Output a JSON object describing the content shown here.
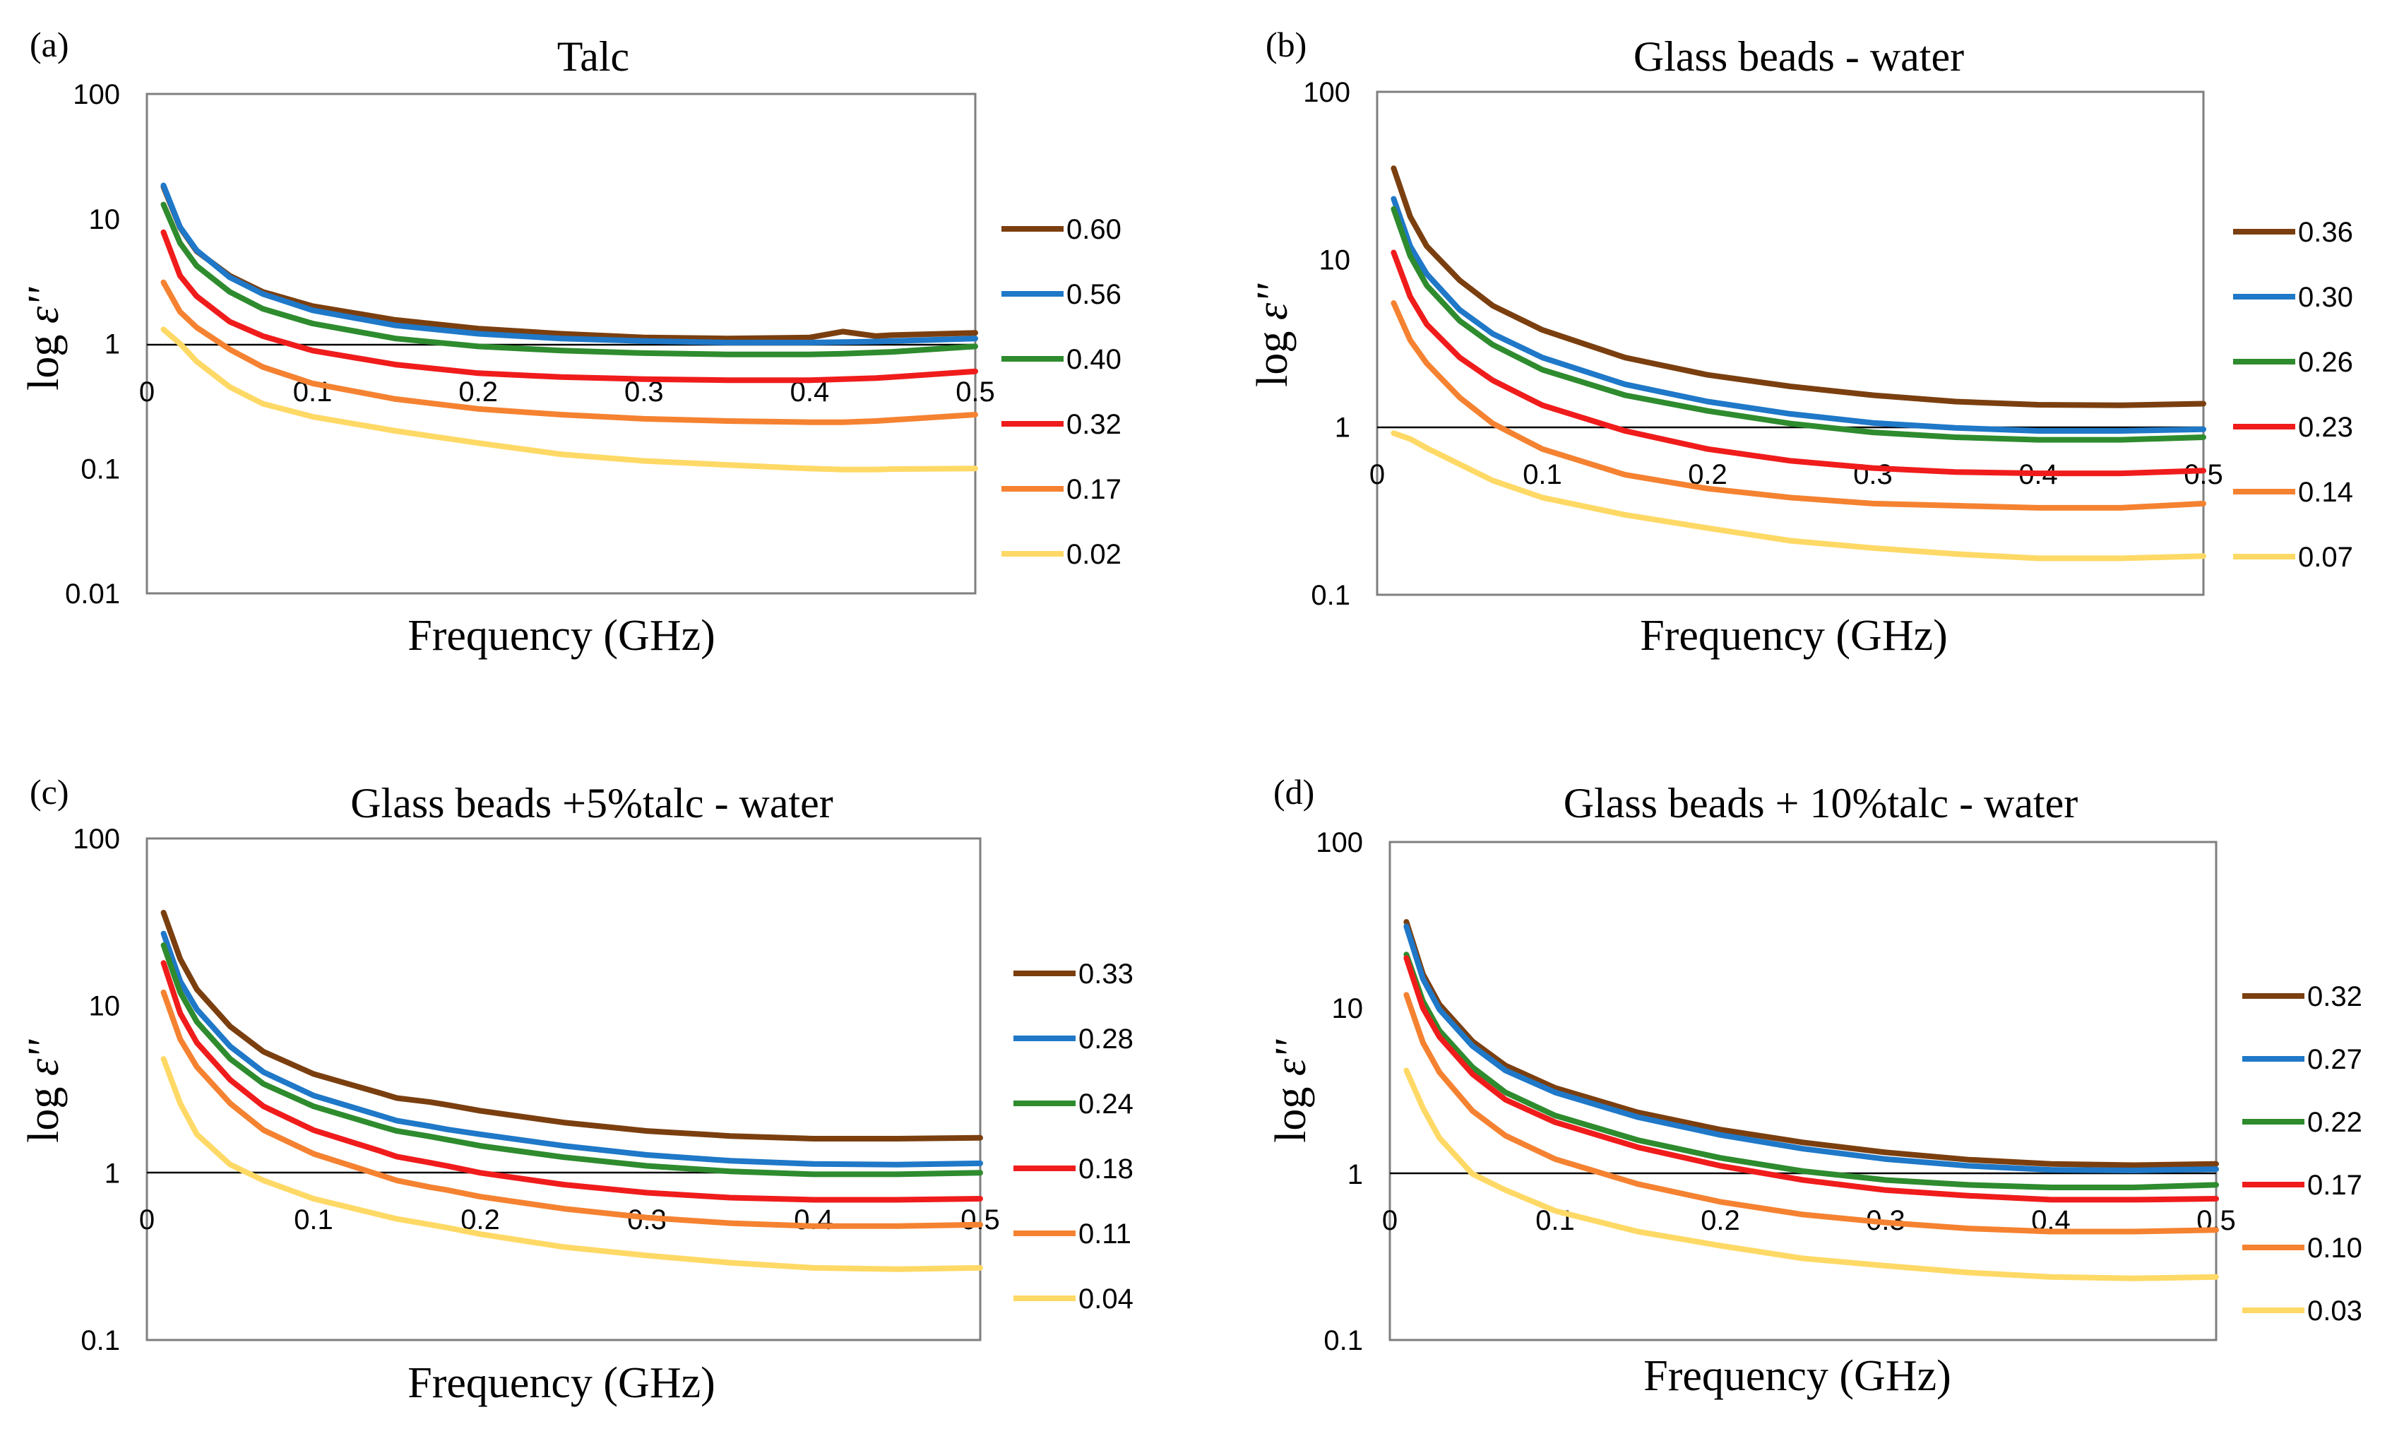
{
  "colors": {
    "brown": "#7B3F0F",
    "blue": "#1F78C8",
    "green": "#2E8B2E",
    "red": "#F01C1C",
    "orange": "#F58231",
    "yellow": "#FFD966"
  },
  "chart_data": [
    {
      "panel_label": "(a)",
      "type": "line",
      "title": "Talc",
      "xlabel": "Frequency (GHz)",
      "ylabel_prefix": "log ",
      "ylabel_symbol": "ε''",
      "yscale": "log",
      "ylim": [
        0.01,
        100
      ],
      "xlim": [
        0,
        0.5
      ],
      "y_ticks": [
        "0.01",
        "0.1",
        "1",
        "10",
        "100"
      ],
      "x_ticks": [
        "0",
        "0.1",
        "0.2",
        "0.3",
        "0.4",
        "0.5"
      ],
      "x_tick_values": [
        0,
        0.1,
        0.2,
        0.3,
        0.4,
        0.5
      ],
      "x": [
        0.01,
        0.02,
        0.03,
        0.05,
        0.07,
        0.1,
        0.15,
        0.2,
        0.25,
        0.3,
        0.35,
        0.4,
        0.42,
        0.44,
        0.45,
        0.5
      ],
      "series": [
        {
          "name": "0.60",
          "color": "#7B3F0F",
          "values": [
            18,
            8.5,
            5.5,
            3.5,
            2.6,
            2.0,
            1.55,
            1.32,
            1.2,
            1.12,
            1.1,
            1.12,
            1.25,
            1.15,
            1.17,
            1.22
          ]
        },
        {
          "name": "0.56",
          "color": "#1F78C8",
          "values": [
            18.5,
            8.6,
            5.6,
            3.4,
            2.5,
            1.85,
            1.4,
            1.2,
            1.1,
            1.05,
            1.02,
            1.02,
            1.03,
            1.04,
            1.05,
            1.1
          ]
        },
        {
          "name": "0.40",
          "color": "#2E8B2E",
          "values": [
            13,
            6.4,
            4.2,
            2.6,
            1.9,
            1.45,
            1.1,
            0.95,
            0.88,
            0.84,
            0.82,
            0.82,
            0.83,
            0.85,
            0.86,
            0.95
          ]
        },
        {
          "name": "0.32",
          "color": "#F01C1C",
          "values": [
            7.8,
            3.5,
            2.4,
            1.5,
            1.15,
            0.88,
            0.68,
            0.58,
            0.54,
            0.52,
            0.51,
            0.51,
            0.52,
            0.53,
            0.54,
            0.6
          ]
        },
        {
          "name": "0.17",
          "color": "#F58231",
          "values": [
            3.1,
            1.8,
            1.35,
            0.9,
            0.65,
            0.48,
            0.36,
            0.3,
            0.27,
            0.25,
            0.24,
            0.235,
            0.235,
            0.24,
            0.245,
            0.27
          ]
        },
        {
          "name": "0.02",
          "color": "#FFD966",
          "values": [
            1.3,
            1.0,
            0.72,
            0.45,
            0.33,
            0.26,
            0.2,
            0.16,
            0.13,
            0.115,
            0.107,
            0.1,
            0.098,
            0.098,
            0.099,
            0.1
          ]
        }
      ]
    },
    {
      "panel_label": "(b)",
      "type": "line",
      "title": "Glass beads - water",
      "xlabel": "Frequency (GHz)",
      "ylabel_prefix": "log ",
      "ylabel_symbol": "ε''",
      "yscale": "log",
      "ylim": [
        0.1,
        100
      ],
      "xlim": [
        0,
        0.5
      ],
      "y_ticks": [
        "0.1",
        "1",
        "10",
        "100"
      ],
      "x_ticks": [
        "0",
        "0.1",
        "0.2",
        "0.3",
        "0.4",
        "0.5"
      ],
      "x_tick_values": [
        0,
        0.1,
        0.2,
        0.3,
        0.4,
        0.5
      ],
      "x": [
        0.01,
        0.02,
        0.03,
        0.05,
        0.07,
        0.1,
        0.15,
        0.2,
        0.25,
        0.3,
        0.35,
        0.4,
        0.45,
        0.5
      ],
      "series": [
        {
          "name": "0.36",
          "color": "#7B3F0F",
          "values": [
            35,
            18,
            12,
            7.5,
            5.3,
            3.8,
            2.6,
            2.05,
            1.75,
            1.55,
            1.42,
            1.36,
            1.35,
            1.38
          ]
        },
        {
          "name": "0.30",
          "color": "#1F78C8",
          "values": [
            23,
            12,
            8.2,
            5.0,
            3.6,
            2.6,
            1.8,
            1.42,
            1.2,
            1.06,
            0.99,
            0.95,
            0.95,
            0.97
          ]
        },
        {
          "name": "0.26",
          "color": "#2E8B2E",
          "values": [
            20,
            10.5,
            7.0,
            4.3,
            3.1,
            2.2,
            1.55,
            1.25,
            1.05,
            0.93,
            0.87,
            0.84,
            0.84,
            0.87
          ]
        },
        {
          "name": "0.23",
          "color": "#F01C1C",
          "values": [
            11,
            6.0,
            4.1,
            2.6,
            1.9,
            1.35,
            0.95,
            0.74,
            0.63,
            0.57,
            0.54,
            0.53,
            0.53,
            0.55
          ]
        },
        {
          "name": "0.14",
          "color": "#F58231",
          "values": [
            5.5,
            3.3,
            2.4,
            1.5,
            1.05,
            0.74,
            0.52,
            0.43,
            0.38,
            0.35,
            0.34,
            0.33,
            0.33,
            0.35
          ]
        },
        {
          "name": "0.07",
          "color": "#FFD966",
          "values": [
            0.92,
            0.85,
            0.75,
            0.6,
            0.48,
            0.38,
            0.3,
            0.25,
            0.21,
            0.19,
            0.175,
            0.165,
            0.165,
            0.17
          ]
        }
      ]
    },
    {
      "panel_label": "(c)",
      "type": "line",
      "title": "Glass beads +5%talc - water",
      "xlabel": "Frequency (GHz)",
      "ylabel_prefix": "log ",
      "ylabel_symbol": "ε''",
      "yscale": "log",
      "ylim": [
        0.1,
        100
      ],
      "xlim": [
        0,
        0.5
      ],
      "y_ticks": [
        "0.1",
        "1",
        "10",
        "100"
      ],
      "x_ticks": [
        "0",
        "0.1",
        "0.2",
        "0.3",
        "0.4",
        "0.5"
      ],
      "x_tick_values": [
        0,
        0.1,
        0.2,
        0.3,
        0.4,
        0.5
      ],
      "x": [
        0.01,
        0.02,
        0.03,
        0.05,
        0.07,
        0.1,
        0.14,
        0.15,
        0.17,
        0.18,
        0.2,
        0.25,
        0.3,
        0.35,
        0.4,
        0.45,
        0.5
      ],
      "series": [
        {
          "name": "0.33",
          "color": "#7B3F0F",
          "values": [
            36,
            19,
            12.5,
            7.5,
            5.3,
            3.9,
            3.0,
            2.8,
            2.65,
            2.55,
            2.35,
            2.0,
            1.78,
            1.66,
            1.6,
            1.6,
            1.62
          ]
        },
        {
          "name": "0.28",
          "color": "#1F78C8",
          "values": [
            27,
            14,
            9.5,
            5.7,
            4.0,
            2.9,
            2.2,
            2.05,
            1.9,
            1.82,
            1.7,
            1.45,
            1.28,
            1.18,
            1.13,
            1.12,
            1.14
          ]
        },
        {
          "name": "0.24",
          "color": "#2E8B2E",
          "values": [
            23,
            12,
            8.0,
            4.8,
            3.4,
            2.5,
            1.9,
            1.78,
            1.65,
            1.58,
            1.45,
            1.24,
            1.1,
            1.02,
            0.98,
            0.98,
            1.0
          ]
        },
        {
          "name": "0.18",
          "color": "#F01C1C",
          "values": [
            18,
            9.0,
            6.0,
            3.6,
            2.5,
            1.8,
            1.35,
            1.25,
            1.15,
            1.1,
            1.0,
            0.85,
            0.76,
            0.71,
            0.69,
            0.69,
            0.7
          ]
        },
        {
          "name": "0.11",
          "color": "#F58231",
          "values": [
            12,
            6.3,
            4.3,
            2.6,
            1.8,
            1.3,
            0.97,
            0.9,
            0.82,
            0.79,
            0.72,
            0.61,
            0.54,
            0.5,
            0.48,
            0.48,
            0.49
          ]
        },
        {
          "name": "0.04",
          "color": "#FFD966",
          "values": [
            4.8,
            2.6,
            1.7,
            1.12,
            0.9,
            0.7,
            0.56,
            0.53,
            0.49,
            0.47,
            0.43,
            0.36,
            0.32,
            0.29,
            0.27,
            0.265,
            0.27
          ]
        }
      ]
    },
    {
      "panel_label": "(d)",
      "type": "line",
      "title": "Glass beads + 10%talc - water",
      "xlabel": "Frequency (GHz)",
      "ylabel_prefix": "log ",
      "ylabel_symbol": "ε''",
      "yscale": "log",
      "ylim": [
        0.1,
        100
      ],
      "xlim": [
        0,
        0.5
      ],
      "y_ticks": [
        "0.1",
        "1",
        "10",
        "100"
      ],
      "x_ticks": [
        "0",
        "0.1",
        "0.2",
        "0.3",
        "0.4",
        "0.5"
      ],
      "x_tick_values": [
        0,
        0.1,
        0.2,
        0.3,
        0.4,
        0.5
      ],
      "x": [
        0.01,
        0.02,
        0.03,
        0.05,
        0.07,
        0.1,
        0.15,
        0.2,
        0.25,
        0.3,
        0.35,
        0.4,
        0.45,
        0.5
      ],
      "series": [
        {
          "name": "0.32",
          "color": "#7B3F0F",
          "values": [
            33,
            16,
            10.5,
            6.3,
            4.5,
            3.3,
            2.35,
            1.85,
            1.55,
            1.35,
            1.22,
            1.15,
            1.13,
            1.15
          ]
        },
        {
          "name": "0.27",
          "color": "#1F78C8",
          "values": [
            31,
            15,
            9.8,
            5.9,
            4.2,
            3.1,
            2.2,
            1.72,
            1.42,
            1.23,
            1.12,
            1.06,
            1.05,
            1.07
          ]
        },
        {
          "name": "0.22",
          "color": "#2E8B2E",
          "values": [
            21,
            11,
            7.3,
            4.4,
            3.1,
            2.25,
            1.6,
            1.25,
            1.04,
            0.92,
            0.86,
            0.83,
            0.83,
            0.86
          ]
        },
        {
          "name": "0.17",
          "color": "#F01C1C",
          "values": [
            20,
            10,
            6.7,
            4.0,
            2.8,
            2.05,
            1.45,
            1.12,
            0.92,
            0.8,
            0.74,
            0.7,
            0.7,
            0.71
          ]
        },
        {
          "name": "0.10",
          "color": "#F58231",
          "values": [
            12,
            6.2,
            4.1,
            2.4,
            1.7,
            1.23,
            0.87,
            0.68,
            0.57,
            0.51,
            0.47,
            0.45,
            0.45,
            0.46
          ]
        },
        {
          "name": "0.03",
          "color": "#FFD966",
          "values": [
            4.2,
            2.5,
            1.65,
            1.0,
            0.8,
            0.6,
            0.45,
            0.37,
            0.31,
            0.28,
            0.255,
            0.24,
            0.235,
            0.24
          ]
        }
      ]
    }
  ]
}
